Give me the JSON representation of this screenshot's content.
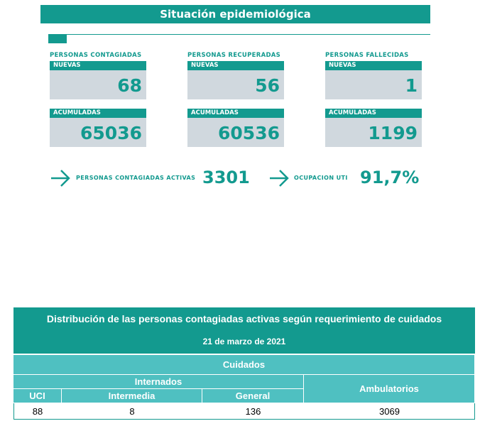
{
  "header": {
    "title": "Situación epidemiológica"
  },
  "columns": [
    {
      "label": "PERSONAS CONTAGIADAS",
      "new_label": "NUEVAS",
      "new": 68,
      "total_label": "ACUMULADAS",
      "total": 65036
    },
    {
      "label": "PERSONAS RECUPERADAS",
      "new_label": "NUEVAS",
      "new": 56,
      "total_label": "ACUMULADAS",
      "total": 60536
    },
    {
      "label": "PERSONAS FALLECIDAS",
      "new_label": "NUEVAS",
      "new": 1,
      "total_label": "ACUMULADAS",
      "total": 1199
    }
  ],
  "indicators": [
    {
      "label": "PERSONAS CONTAGIADAS ACTIVAS",
      "value": 3301
    },
    {
      "label": "OCUPACION UTI",
      "value": "91,7%"
    }
  ],
  "table": {
    "title": "Distribución de las personas contagiadas activas según requerimiento de cuidados",
    "date": "21 de marzo de 2021",
    "group": "Cuidados",
    "subgroup": "Internados",
    "headers": [
      "UCI",
      "Intermedia",
      "General",
      "Ambulatorios"
    ],
    "rows": [
      [
        88,
        8,
        136,
        3069
      ]
    ]
  }
}
